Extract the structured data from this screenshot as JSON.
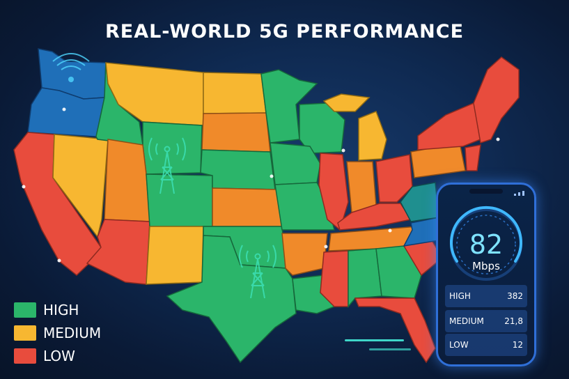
{
  "title": "REAL-WORLD 5G PERFORMANCE",
  "colors": {
    "high": "#2bb56a",
    "medium": "#f7b731",
    "low": "#e84c3d",
    "orange": "#f08a2a",
    "teal": "#1f8f8f",
    "blue": "#1f6fb8"
  },
  "legend": [
    {
      "label": "HIGH",
      "color": "#2bb56a"
    },
    {
      "label": "MEDIUM",
      "color": "#f7b731"
    },
    {
      "label": "LOW",
      "color": "#e84c3d"
    }
  ],
  "phone": {
    "speed": "82",
    "unit": "Mbps",
    "stats": [
      {
        "label": "HIGH",
        "value": "382"
      },
      {
        "label": "MEDIUM",
        "value": "21,8"
      },
      {
        "label": "LOW",
        "value": "12"
      }
    ]
  },
  "icons": [
    "cell-tower-icon",
    "wifi-signal-icon",
    "location-dot-icon"
  ]
}
